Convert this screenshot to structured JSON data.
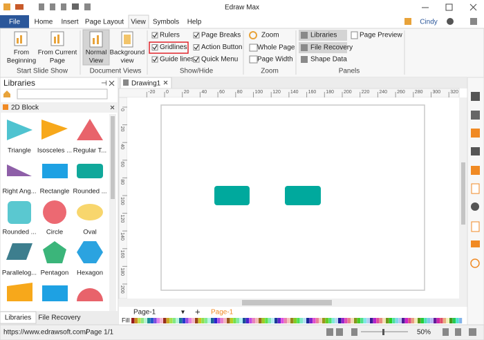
{
  "window": {
    "title": "Edraw Max",
    "user": "Cindy"
  },
  "menu_tabs": [
    "File",
    "Home",
    "Insert",
    "Page Layout",
    "View",
    "Symbols",
    "Help"
  ],
  "ribbon": {
    "start_slide_show": {
      "label": "Start Slide Show",
      "buttons": [
        [
          "From",
          "Beginning"
        ],
        [
          "From Current",
          "Page"
        ]
      ]
    },
    "document_views": {
      "label": "Document Views",
      "buttons": [
        [
          "Normal",
          "View"
        ],
        [
          "Background",
          "view"
        ]
      ]
    },
    "show_hide": {
      "label": "Show/Hide",
      "options": [
        {
          "text": "Rulers",
          "checked": true
        },
        {
          "text": "Page Breaks",
          "checked": true
        },
        {
          "text": "Gridlines",
          "checked": true
        },
        {
          "text": "Action Button",
          "checked": true
        },
        {
          "text": "Guide lines",
          "checked": true
        },
        {
          "text": "Quick Menu",
          "checked": true
        }
      ]
    },
    "zoom": {
      "label": "Zoom",
      "buttons": [
        "Zoom",
        "Whole Page",
        "Page Width"
      ]
    },
    "panels": {
      "label": "Panels",
      "buttons": [
        "Libraries",
        "Page Preview",
        "File Recovery",
        "Shape Data"
      ]
    }
  },
  "library": {
    "title": "Libraries",
    "category": "2D Block",
    "shapes": [
      "Triangle",
      "Isosceles ...",
      "Regular T...",
      "Right Ang...",
      "Rectangle",
      "Rounded ...",
      "Rounded ...",
      "Circle",
      "Oval",
      "Parallelog...",
      "Pentagon",
      "Hexagon"
    ]
  },
  "panel_tabs": [
    "Libraries",
    "File Recovery"
  ],
  "document": {
    "tab": "Drawing1",
    "ruler_x": [
      -20,
      0,
      20,
      40,
      60,
      80,
      100,
      120,
      140,
      160,
      180,
      200,
      220,
      240,
      260,
      280,
      300,
      320
    ],
    "ruler_y": [
      0,
      20,
      40,
      60,
      80,
      100,
      120,
      140,
      160,
      180,
      200
    ]
  },
  "pages": {
    "list": [
      "Page-1"
    ],
    "current": "Page-1"
  },
  "fill_label": "Fill",
  "status": {
    "url": "https://www.edrawsoft.com/",
    "page": "Page 1/1",
    "zoom": "50%"
  }
}
